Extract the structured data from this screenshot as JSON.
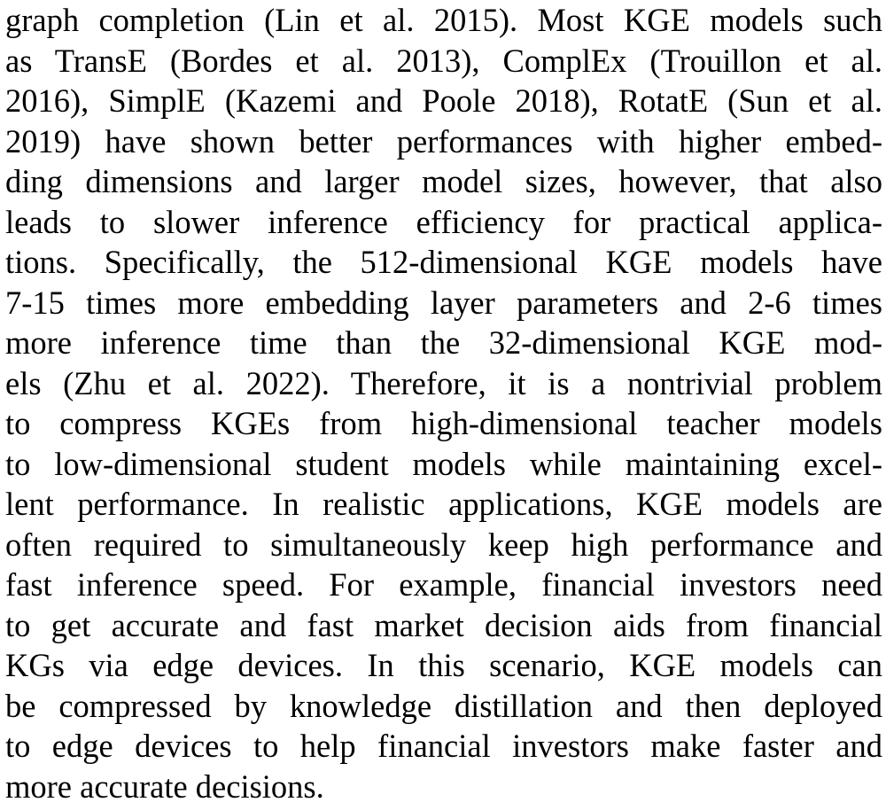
{
  "paragraph": {
    "lines": [
      "graph completion (Lin et al. 2015). Most KGE models such",
      "as TransE (Bordes et al. 2013), ComplEx (Trouillon et al.",
      "2016), SimplE (Kazemi and Poole 2018), RotatE (Sun et al.",
      "2019) have shown better performances with higher embed-",
      "ding dimensions and larger model sizes, however, that also",
      "leads to slower inference efficiency for practical applica-",
      "tions. Specifically, the 512-dimensional KGE models have",
      "7-15 times more embedding layer parameters and 2-6 times",
      "more inference time than the 32-dimensional KGE mod-",
      "els (Zhu et al. 2022). Therefore, it is a nontrivial problem",
      "to compress KGEs from high-dimensional teacher models",
      "to low-dimensional student models while maintaining excel-",
      "lent performance. In realistic applications, KGE models are",
      "often required to simultaneously keep high performance and",
      "fast inference speed. For example, financial investors need",
      "to get accurate and fast market decision aids from financial",
      "KGs via edge devices. In this scenario, KGE models can",
      "be compressed by knowledge distillation and then deployed",
      "to edge devices to help financial investors make faster and",
      "more accurate decisions."
    ]
  }
}
